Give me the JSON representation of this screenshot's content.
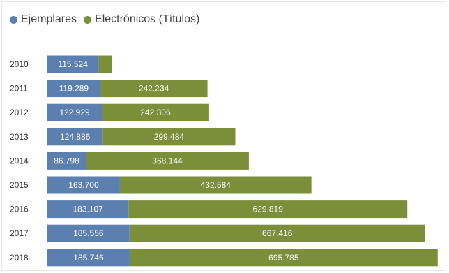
{
  "chart_data": {
    "type": "bar",
    "orientation": "horizontal",
    "stacked": true,
    "categories": [
      "2010",
      "2011",
      "2012",
      "2013",
      "2014",
      "2015",
      "2016",
      "2017",
      "2018"
    ],
    "series": [
      {
        "name": "Ejemplares",
        "color": "#5b7fae",
        "values": [
          115524,
          119289,
          122929,
          124886,
          86798,
          163700,
          183107,
          185556,
          185746
        ],
        "labels": [
          "115.524",
          "119.289",
          "122.929",
          "124.886",
          "86.798",
          "163.700",
          "183.107",
          "185.556",
          "185.746"
        ]
      },
      {
        "name": "Electrónicos (Títulos)",
        "color": "#7b8f3b",
        "values": [
          null,
          242234,
          242306,
          299484,
          368144,
          432584,
          629819,
          667416,
          695785
        ],
        "labels": [
          "",
          "242.234",
          "242.306",
          "299.484",
          "368.144",
          "432.584",
          "629.819",
          "667.416",
          "695.785"
        ]
      }
    ],
    "legend_position": "top-left",
    "grid": false
  }
}
